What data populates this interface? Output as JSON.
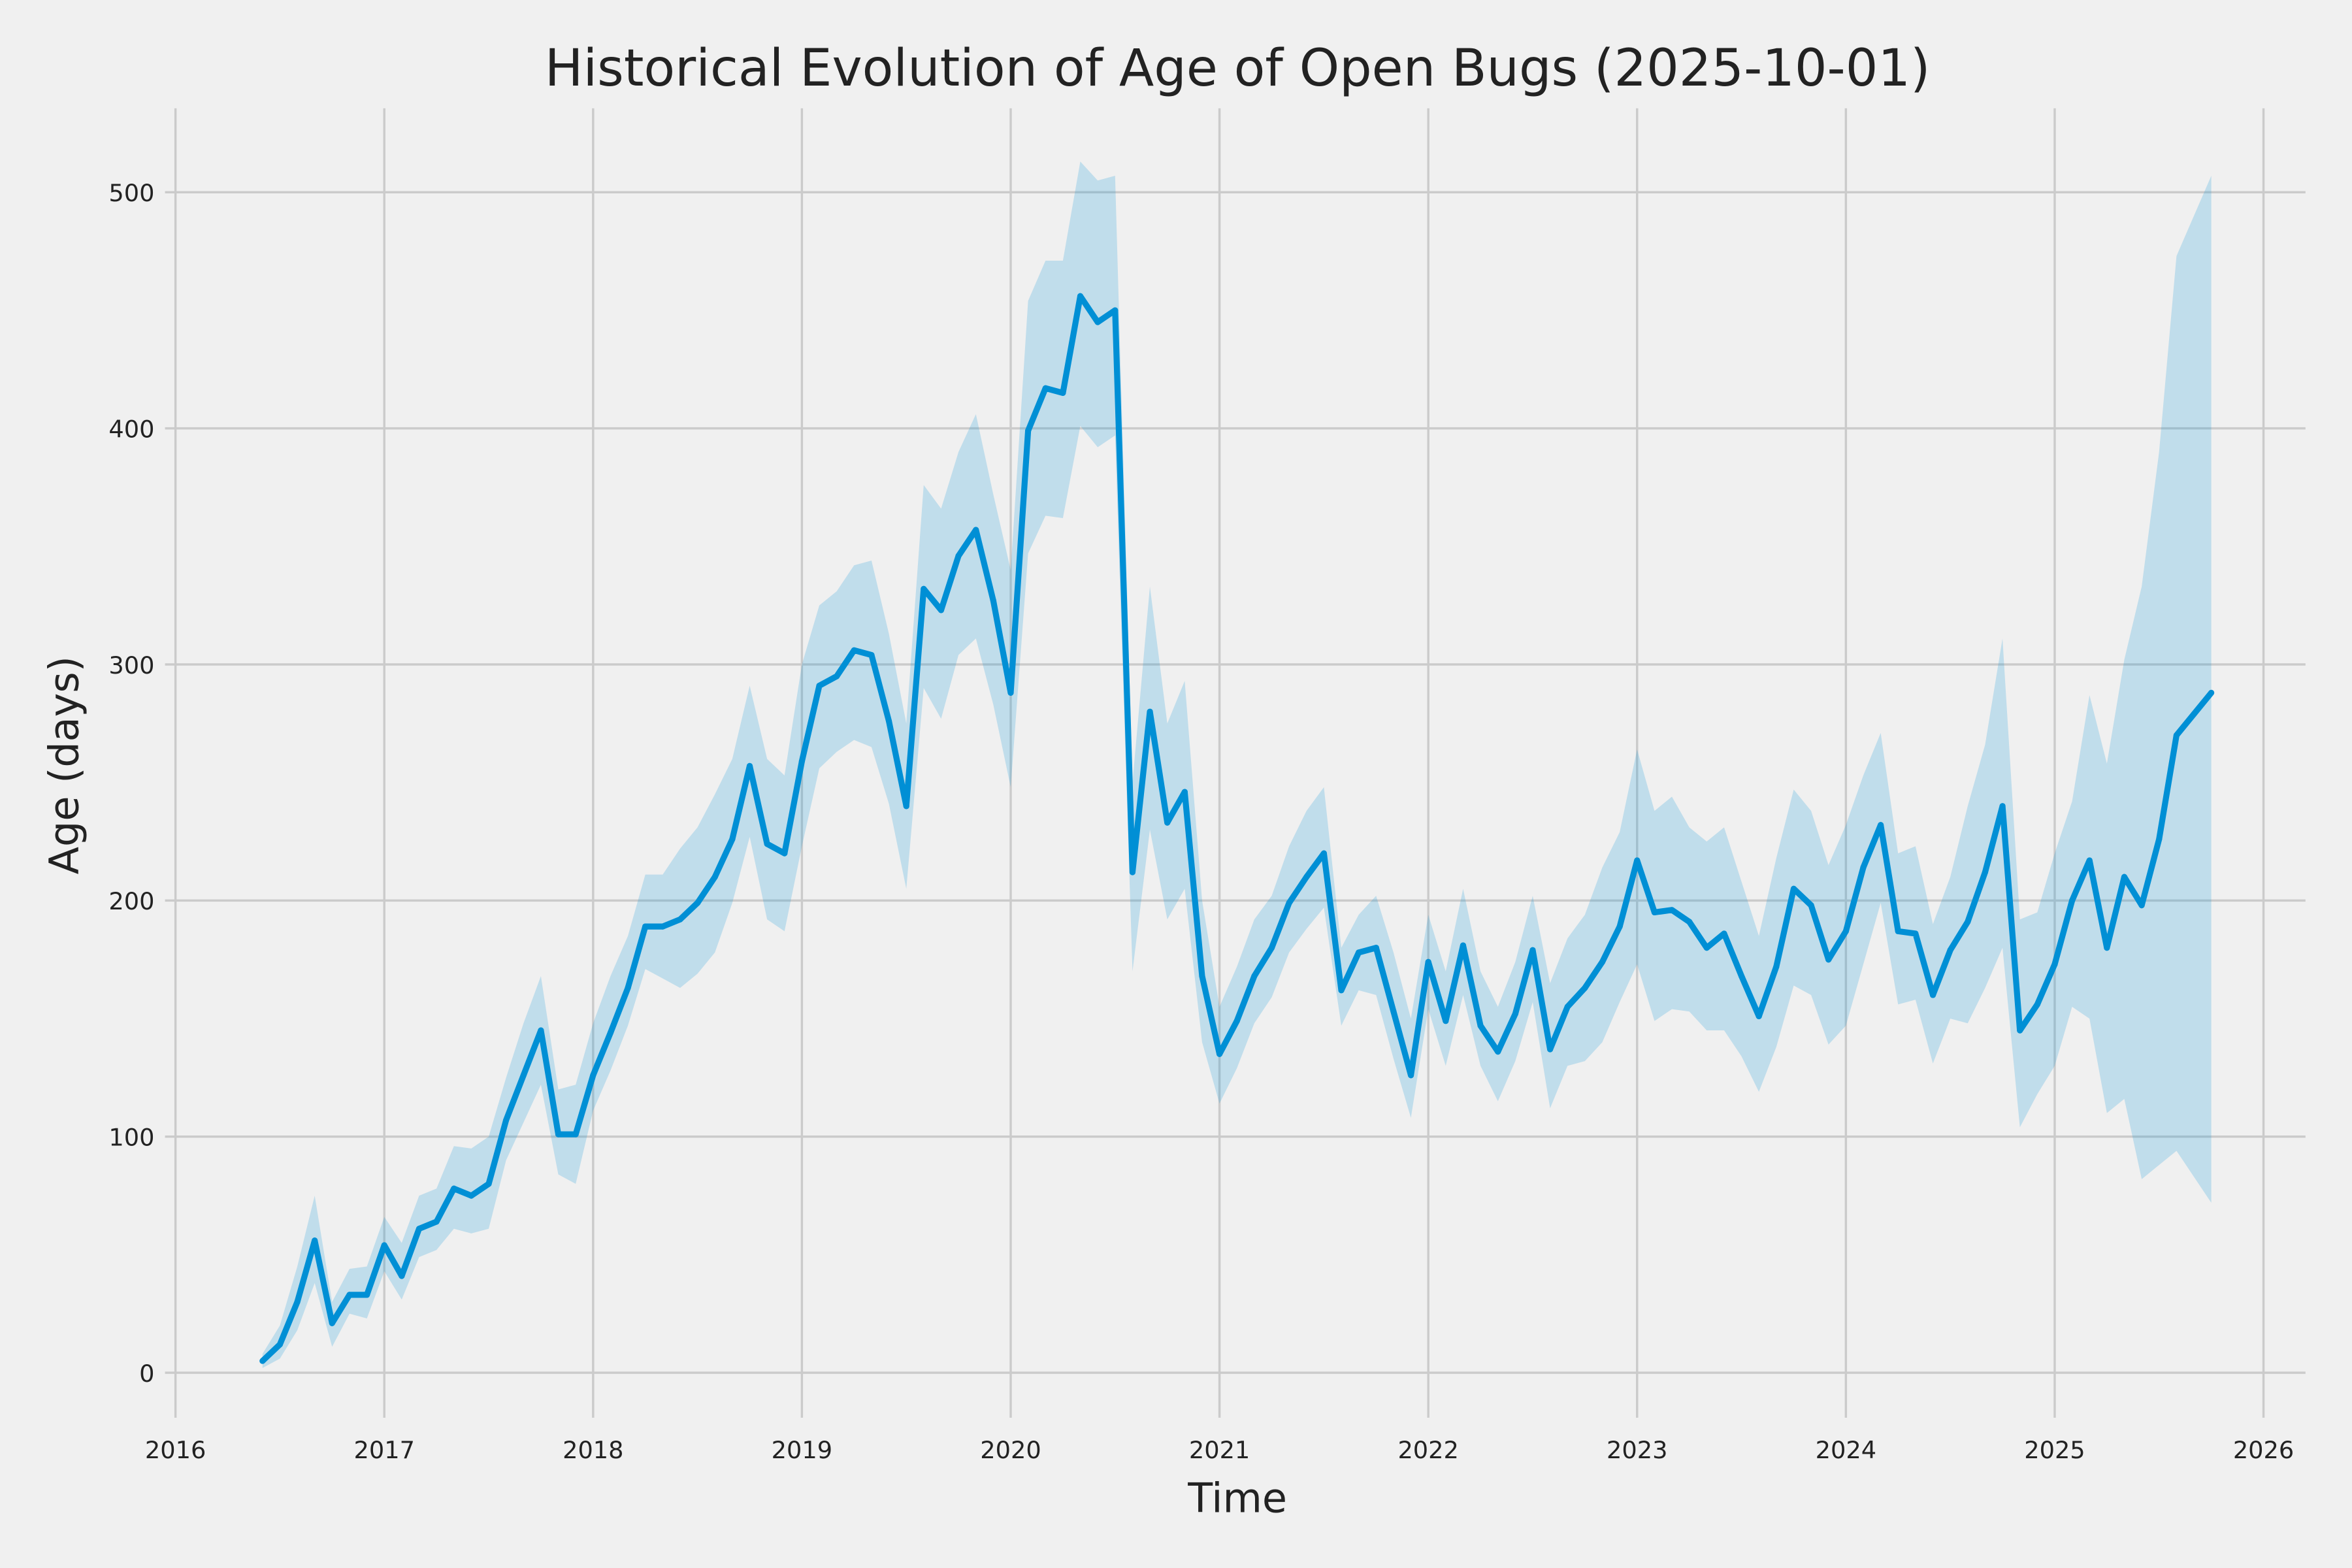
{
  "chart_data": {
    "type": "line",
    "title": "Historical Evolution of Age of Open Bugs (2025-10-01)",
    "xlabel": "Time",
    "ylabel": "Age (days)",
    "xlim": [
      2016,
      2026
    ],
    "ylim": [
      -15,
      535
    ],
    "xticks": [
      "2016",
      "2017",
      "2018",
      "2019",
      "2020",
      "2021",
      "2022",
      "2023",
      "2024",
      "2025",
      "2026"
    ],
    "yticks": [
      0,
      100,
      200,
      300,
      400,
      500
    ],
    "grid": true,
    "colors": {
      "line": "#008fd5",
      "band": "#008fd5",
      "background": "#f0f0f0",
      "grid": "#cbcbcb"
    },
    "x": [
      "2016-06",
      "2016-07",
      "2016-08",
      "2016-09",
      "2016-10",
      "2016-11",
      "2016-12",
      "2017-01",
      "2017-02",
      "2017-03",
      "2017-04",
      "2017-05",
      "2017-06",
      "2017-07",
      "2017-08",
      "2017-09",
      "2017-10",
      "2017-11",
      "2017-12",
      "2018-01",
      "2018-02",
      "2018-03",
      "2018-04",
      "2018-05",
      "2018-06",
      "2018-07",
      "2018-08",
      "2018-09",
      "2018-10",
      "2018-11",
      "2018-12",
      "2019-01",
      "2019-02",
      "2019-03",
      "2019-04",
      "2019-05",
      "2019-06",
      "2019-07",
      "2019-08",
      "2019-09",
      "2019-10",
      "2019-11",
      "2019-12",
      "2020-01",
      "2020-02",
      "2020-03",
      "2020-04",
      "2020-05",
      "2020-06",
      "2020-07",
      "2020-08",
      "2020-09",
      "2020-10",
      "2020-11",
      "2020-12",
      "2021-01",
      "2021-02",
      "2021-03",
      "2021-04",
      "2021-05",
      "2021-06",
      "2021-07",
      "2021-08",
      "2021-09",
      "2021-10",
      "2021-11",
      "2021-12",
      "2022-01",
      "2022-02",
      "2022-03",
      "2022-04",
      "2022-05",
      "2022-06",
      "2022-07",
      "2022-08",
      "2022-09",
      "2022-10",
      "2022-11",
      "2022-12",
      "2023-01",
      "2023-02",
      "2023-03",
      "2023-04",
      "2023-05",
      "2023-06",
      "2023-07",
      "2023-08",
      "2023-09",
      "2023-10",
      "2023-11",
      "2023-12",
      "2024-01",
      "2024-02",
      "2024-03",
      "2024-04",
      "2024-05",
      "2024-06",
      "2024-07",
      "2024-08",
      "2024-09",
      "2024-10",
      "2024-11",
      "2024-12",
      "2025-01",
      "2025-02",
      "2025-03",
      "2025-04",
      "2025-05",
      "2025-06",
      "2025-07",
      "2025-08",
      "2025-09",
      "2025-10"
    ],
    "series": [
      {
        "values": [
          5,
          12,
          30,
          56,
          21,
          33,
          33,
          54,
          41,
          61,
          64,
          78,
          75,
          80,
          107,
          126,
          145,
          101,
          101,
          126,
          144,
          163,
          189,
          189,
          192,
          199,
          210,
          226,
          257,
          224,
          220,
          259,
          291,
          295,
          306,
          304,
          276,
          240,
          332,
          323,
          346,
          357,
          327,
          288,
          399,
          417,
          415,
          456,
          445,
          450,
          212,
          280,
          233,
          246,
          168,
          135,
          149,
          168,
          180,
          199,
          210,
          220,
          162,
          178,
          180,
          153,
          126,
          174,
          149,
          181,
          147,
          136,
          152,
          179,
          137,
          155,
          163,
          174,
          189,
          217,
          195,
          196,
          191,
          180,
          186,
          168,
          151,
          172,
          205,
          198,
          175,
          187,
          214,
          232,
          187,
          186,
          160,
          179,
          191,
          212,
          240,
          145,
          156,
          173,
          200,
          217,
          180,
          210,
          198,
          226,
          270,
          279,
          288
        ],
        "lower": [
          2,
          6,
          18,
          38,
          11,
          25,
          23,
          43,
          31,
          49,
          52,
          61,
          59,
          61,
          90,
          106,
          122,
          84,
          80,
          111,
          128,
          147,
          171,
          167,
          163,
          169,
          178,
          199,
          227,
          192,
          187,
          223,
          256,
          263,
          268,
          265,
          241,
          205,
          290,
          277,
          304,
          311,
          283,
          248,
          347,
          363,
          362,
          401,
          392,
          397,
          170,
          230,
          192,
          205,
          140,
          114,
          129,
          148,
          159,
          178,
          188,
          197,
          147,
          162,
          160,
          133,
          108,
          154,
          130,
          160,
          130,
          115,
          132,
          157,
          112,
          130,
          132,
          140,
          157,
          173,
          149,
          154,
          153,
          145,
          145,
          134,
          119,
          138,
          164,
          160,
          139,
          147,
          173,
          199,
          156,
          158,
          131,
          150,
          148,
          163,
          180,
          104,
          118,
          130,
          155,
          150,
          110,
          116,
          82,
          88,
          94,
          83,
          72
        ],
        "upper": [
          8,
          20,
          45,
          75,
          30,
          44,
          45,
          66,
          55,
          75,
          78,
          96,
          95,
          100,
          125,
          148,
          168,
          120,
          122,
          148,
          168,
          185,
          211,
          211,
          222,
          231,
          245,
          260,
          291,
          260,
          253,
          300,
          325,
          331,
          342,
          344,
          313,
          275,
          376,
          366,
          390,
          406,
          372,
          340,
          454,
          471,
          471,
          513,
          505,
          507,
          250,
          333,
          275,
          293,
          200,
          155,
          172,
          192,
          202,
          223,
          238,
          248,
          180,
          194,
          202,
          178,
          150,
          194,
          170,
          205,
          170,
          155,
          174,
          202,
          165,
          184,
          194,
          214,
          229,
          264,
          238,
          244,
          231,
          225,
          231,
          208,
          185,
          218,
          247,
          238,
          215,
          232,
          253,
          271,
          220,
          223,
          190,
          210,
          240,
          266,
          311,
          192,
          195,
          220,
          242,
          287,
          258,
          302,
          333,
          390,
          473,
          490,
          507
        ]
      }
    ]
  }
}
